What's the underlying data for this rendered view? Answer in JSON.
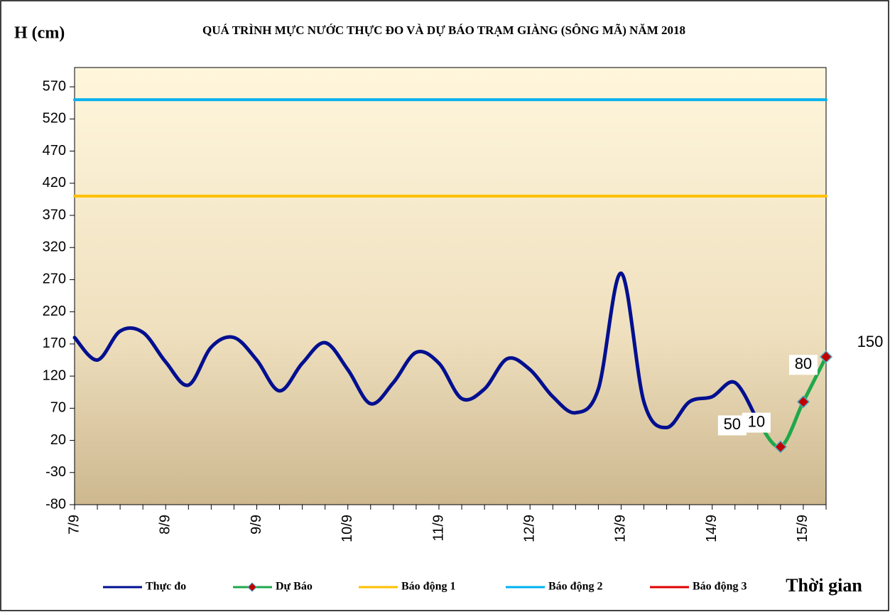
{
  "chart_data": {
    "type": "line",
    "title": "QUÁ TRÌNH MỰC NƯỚC THỰC ĐO VÀ DỰ BÁO TRẠM GIÀNG (SÔNG MÃ) NĂM 2018",
    "y_label": "H (cm)",
    "x_label": "Thời gian",
    "categories": [
      "7/9",
      null,
      null,
      null,
      "8/9",
      null,
      null,
      null,
      "9/9",
      null,
      null,
      null,
      "10/9",
      null,
      null,
      null,
      "11/9",
      null,
      null,
      null,
      "12/9",
      null,
      null,
      null,
      "13/9",
      null,
      null,
      null,
      "14/9",
      null,
      null,
      null,
      "15/9",
      null
    ],
    "series": [
      {
        "name": "Thực đo",
        "color": "#000f8f",
        "values": [
          180,
          145,
          190,
          188,
          142,
          106,
          165,
          180,
          145,
          97,
          140,
          172,
          130,
          77,
          110,
          157,
          140,
          85,
          100,
          147,
          130,
          88,
          63,
          100,
          280,
          80,
          40,
          80,
          88,
          110,
          50,
          null,
          null,
          null
        ]
      },
      {
        "name": "Dự Báo",
        "color": "#1fa84a",
        "values": [
          null,
          null,
          null,
          null,
          null,
          null,
          null,
          null,
          null,
          null,
          null,
          null,
          null,
          null,
          null,
          null,
          null,
          null,
          null,
          null,
          null,
          null,
          null,
          null,
          null,
          null,
          null,
          null,
          null,
          null,
          50,
          10,
          80,
          150
        ]
      },
      {
        "name": "Báo động 1",
        "color": "#ffc000",
        "values": [
          400,
          400,
          400,
          400,
          400,
          400,
          400,
          400,
          400,
          400,
          400,
          400,
          400,
          400,
          400,
          400,
          400,
          400,
          400,
          400,
          400,
          400,
          400,
          400,
          400,
          400,
          400,
          400,
          400,
          400,
          400,
          400,
          400,
          400
        ]
      },
      {
        "name": "Báo động 2",
        "color": "#00b0f0",
        "values": [
          550,
          550,
          550,
          550,
          550,
          550,
          550,
          550,
          550,
          550,
          550,
          550,
          550,
          550,
          550,
          550,
          550,
          550,
          550,
          550,
          550,
          550,
          550,
          550,
          550,
          550,
          550,
          550,
          550,
          550,
          550,
          550,
          550,
          550
        ]
      },
      {
        "name": "Báo động 3",
        "color": "#e00000",
        "values": [
          null,
          null,
          null,
          null,
          null,
          null,
          null,
          null,
          null,
          null,
          null,
          null,
          null,
          null,
          null,
          null,
          null,
          null,
          null,
          null,
          null,
          null,
          null,
          null,
          null,
          null,
          null,
          null,
          null,
          null,
          null,
          null,
          null,
          null
        ]
      }
    ],
    "ylim": [
      -80,
      600
    ],
    "yticks": [
      -80,
      -30,
      20,
      70,
      120,
      170,
      220,
      270,
      320,
      370,
      420,
      470,
      520,
      570
    ]
  }
}
